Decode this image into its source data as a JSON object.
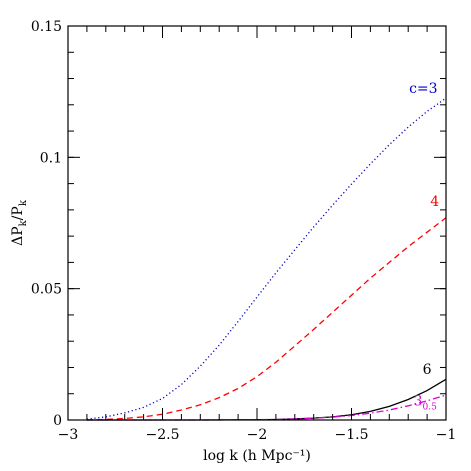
{
  "chart_data": {
    "type": "line",
    "title": "",
    "xlabel": "log k (h Mpc⁻¹)",
    "ylabel": "ΔP",
    "ylabel_sub": "k",
    "ylabel_mid": "/P",
    "xlim": [
      -3,
      -1
    ],
    "ylim": [
      0,
      0.15
    ],
    "xticks": [
      -3,
      -2.5,
      -2,
      -1.5,
      -1
    ],
    "xtick_labels": [
      "−3",
      "−2.5",
      "−2",
      "−1.5",
      "−1"
    ],
    "yticks": [
      0,
      0.05,
      0.1,
      0.15
    ],
    "ytick_labels": [
      "0",
      "0.05",
      "0.1",
      "0.15"
    ],
    "grid": false,
    "series": [
      {
        "color": "#0000cc",
        "dash": "dotted",
        "x": [
          -2.9,
          -2.8,
          -2.7,
          -2.6,
          -2.5,
          -2.4,
          -2.3,
          -2.2,
          -2.1,
          -2.0,
          -1.9,
          -1.8,
          -1.7,
          -1.6,
          -1.5,
          -1.4,
          -1.3,
          -1.2,
          -1.1,
          -1.0
        ],
        "y": [
          0.0003,
          0.0012,
          0.0027,
          0.0048,
          0.0082,
          0.0135,
          0.0205,
          0.0285,
          0.0375,
          0.0468,
          0.056,
          0.0648,
          0.0735,
          0.0818,
          0.0898,
          0.0975,
          0.1048,
          0.1115,
          0.1175,
          0.1225
        ]
      },
      {
        "color": "#ff0000",
        "dash": "dashed",
        "x": [
          -2.9,
          -2.8,
          -2.7,
          -2.6,
          -2.5,
          -2.4,
          -2.3,
          -2.2,
          -2.1,
          -2.0,
          -1.9,
          -1.8,
          -1.7,
          -1.6,
          -1.5,
          -1.4,
          -1.3,
          -1.2,
          -1.1,
          -1.0
        ],
        "y": [
          0.0,
          0.0002,
          0.0006,
          0.0012,
          0.0022,
          0.0038,
          0.0058,
          0.0085,
          0.012,
          0.0165,
          0.022,
          0.0282,
          0.0345,
          0.041,
          0.0475,
          0.054,
          0.06,
          0.066,
          0.0715,
          0.077
        ]
      },
      {
        "color": "#000000",
        "dash": "solid",
        "x": [
          -2.9,
          -2.6,
          -2.3,
          -2.0,
          -1.9,
          -1.8,
          -1.7,
          -1.6,
          -1.5,
          -1.4,
          -1.3,
          -1.2,
          -1.1,
          -1.0
        ],
        "y": [
          0.0,
          0.0,
          0.0,
          0.0001,
          0.0002,
          0.0004,
          0.0007,
          0.0012,
          0.002,
          0.0033,
          0.0052,
          0.0078,
          0.0112,
          0.0155
        ]
      },
      {
        "color": "#dd00dd",
        "dash": "dashdot",
        "x": [
          -2.9,
          -2.6,
          -2.3,
          -2.0,
          -1.9,
          -1.8,
          -1.7,
          -1.6,
          -1.5,
          -1.4,
          -1.3,
          -1.2,
          -1.1,
          -1.0
        ],
        "y": [
          0.0,
          0.0,
          0.0,
          0.0001,
          0.0002,
          0.0004,
          0.0007,
          0.0011,
          0.0017,
          0.0026,
          0.0038,
          0.0054,
          0.0073,
          0.0095
        ]
      }
    ],
    "annotations": [
      {
        "text": "c=3",
        "sub": "",
        "color": "#0000cc",
        "x": -1.12,
        "y": 0.1245
      },
      {
        "text": "4",
        "sub": "",
        "color": "#ff0000",
        "x": -1.06,
        "y": 0.0815
      },
      {
        "text": "6",
        "sub": "",
        "color": "#000000",
        "x": -1.1,
        "y": 0.0175
      },
      {
        "text": "3",
        "sub": "0.5",
        "color": "#dd00dd",
        "x": -1.11,
        "y": 0.0055
      }
    ]
  }
}
